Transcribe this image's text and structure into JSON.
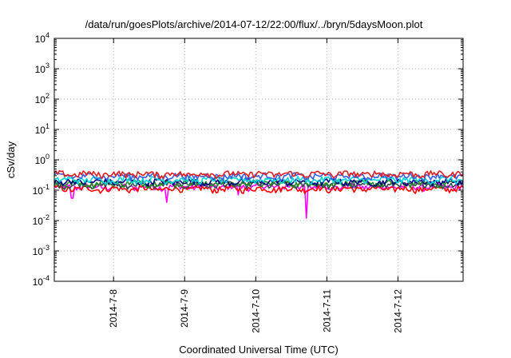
{
  "chart_data": {
    "type": "line",
    "title": "/data/run/goesPlots/archive/2014-07-12/22:00/flux/../bryn/5daysMoon.plot",
    "xlabel": "Coordinated Universal Time (UTC)",
    "ylabel": "cSv/day",
    "yscale": "log",
    "ylim": [
      0.0001,
      10000
    ],
    "xlim": [
      "2014-07-07T04:00",
      "2014-07-12T22:00"
    ],
    "grid": true,
    "x_ticks": [
      {
        "date": "2014-07-08",
        "label": "2014-7-8"
      },
      {
        "date": "2014-07-09",
        "label": "2014-7-9"
      },
      {
        "date": "2014-07-10",
        "label": "2014-7-10"
      },
      {
        "date": "2014-07-11",
        "label": "2014-7-11"
      },
      {
        "date": "2014-07-12",
        "label": "2014-7-12"
      }
    ],
    "y_ticks": [
      {
        "value": 0.0001,
        "base": "10",
        "exp": "-4"
      },
      {
        "value": 0.001,
        "base": "10",
        "exp": "-3"
      },
      {
        "value": 0.01,
        "base": "10",
        "exp": "-2"
      },
      {
        "value": 0.1,
        "base": "10",
        "exp": "-1"
      },
      {
        "value": 1,
        "base": "10",
        "exp": "0"
      },
      {
        "value": 10,
        "base": "10",
        "exp": "1"
      },
      {
        "value": 100,
        "base": "10",
        "exp": "2"
      },
      {
        "value": 1000,
        "base": "10",
        "exp": "3"
      },
      {
        "value": 10000,
        "base": "10",
        "exp": "4"
      }
    ],
    "series": [
      {
        "color": "#ff00ff",
        "baseline": 0.13,
        "dips": [
          {
            "date": "2014-07-07T10:00",
            "value": 0.055
          },
          {
            "date": "2014-07-08T18:00",
            "value": 0.04
          },
          {
            "date": "2014-07-09T18:00",
            "value": 0.07
          },
          {
            "date": "2014-07-10T17:00",
            "value": 0.012
          }
        ]
      },
      {
        "color": "#ff0000",
        "baseline": 0.11
      },
      {
        "color": "#2f4f4f",
        "baseline": 0.15
      },
      {
        "color": "#228b22",
        "baseline": 0.17
      },
      {
        "color": "#000080",
        "baseline": 0.19
      },
      {
        "color": "#00d5d5",
        "baseline": 0.22
      },
      {
        "color": "#3a5fe0",
        "baseline": 0.29
      },
      {
        "color": "#e02020",
        "baseline": 0.34
      }
    ]
  }
}
